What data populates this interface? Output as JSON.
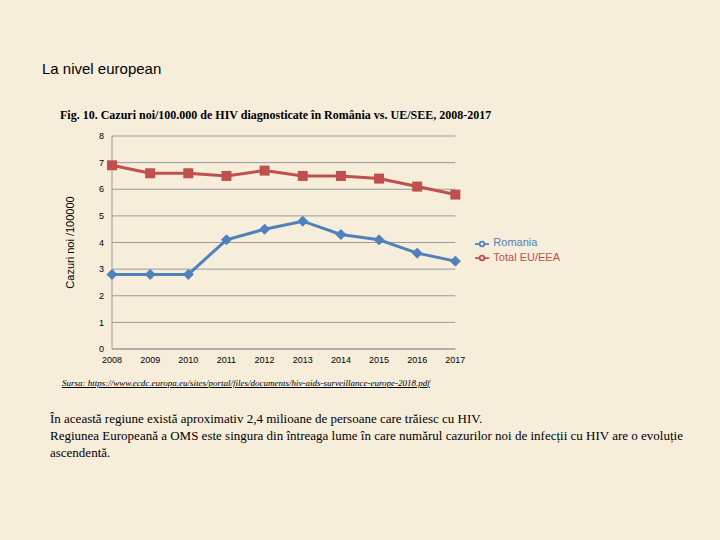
{
  "heading": "La nivel european",
  "source": "Sursa: https://www.ecdc.europa.eu/sites/portal/files/documents/hiv-aids-surveillance-europe-2018.pdf",
  "paragraphs": [
    "În această regiune există aproximativ 2,4 milioane de persoane care trăiesc cu HIV.",
    "Regiunea Europeană a OMS este singura din întreaga lume în care numărul cazurilor noi de infecții cu HIV are o evoluție ascendentă."
  ],
  "chart_data": {
    "type": "line",
    "title": "Fig. 10. Cazuri noi/100.000 de HIV diagnosticate în România vs. UE/SEE, 2008-2017",
    "y_label": "Cazuri noi /100000",
    "categories": [
      "2008",
      "2009",
      "2010",
      "2011",
      "2012",
      "2013",
      "2014",
      "2015",
      "2016",
      "2017"
    ],
    "series": [
      {
        "name": "Romania",
        "color": "#4f81bd",
        "marker": "diamond",
        "values": [
          2.8,
          2.8,
          2.8,
          4.1,
          4.5,
          4.8,
          4.3,
          4.1,
          3.6,
          3.3
        ]
      },
      {
        "name": "Total EU/EEA",
        "color": "#c0504d",
        "marker": "square",
        "values": [
          6.9,
          6.6,
          6.6,
          6.5,
          6.7,
          6.5,
          6.5,
          6.4,
          6.1,
          5.8
        ]
      }
    ],
    "ylim": [
      0,
      8
    ],
    "yticks": [
      0,
      1,
      2,
      3,
      4,
      5,
      6,
      7,
      8
    ],
    "grid": true,
    "legend": "right"
  }
}
